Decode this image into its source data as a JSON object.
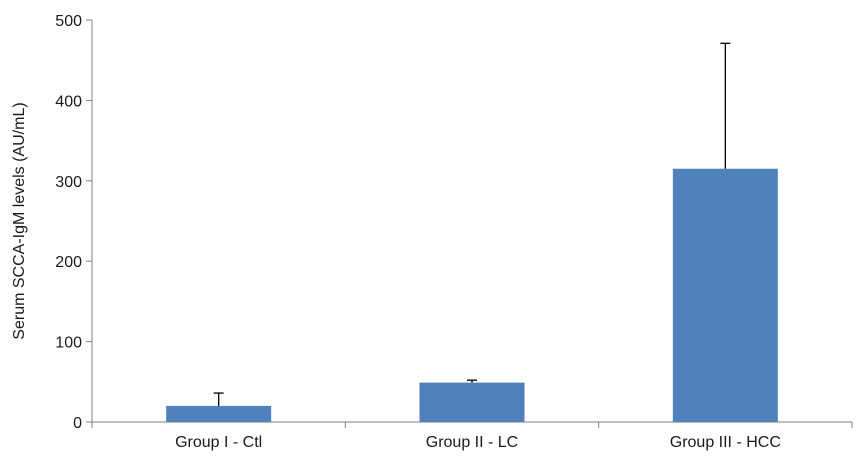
{
  "chart_data": {
    "type": "bar",
    "title": "",
    "xlabel": "",
    "ylabel": "Serum SCCA-IgM levels (AU/mL)",
    "categories": [
      "Group I - Ctl",
      "Group II - LC",
      "Group III - HCC"
    ],
    "values": [
      20,
      49,
      315
    ],
    "error_upper": [
      16,
      3,
      156
    ],
    "ylim": [
      0,
      500
    ],
    "yticks": [
      "0",
      "100",
      "200",
      "300",
      "400",
      "500"
    ],
    "grid": false,
    "legend": "none",
    "bar_color": "#4f81bd",
    "error_bar_color": "#000000",
    "axis_color": "#808080"
  }
}
